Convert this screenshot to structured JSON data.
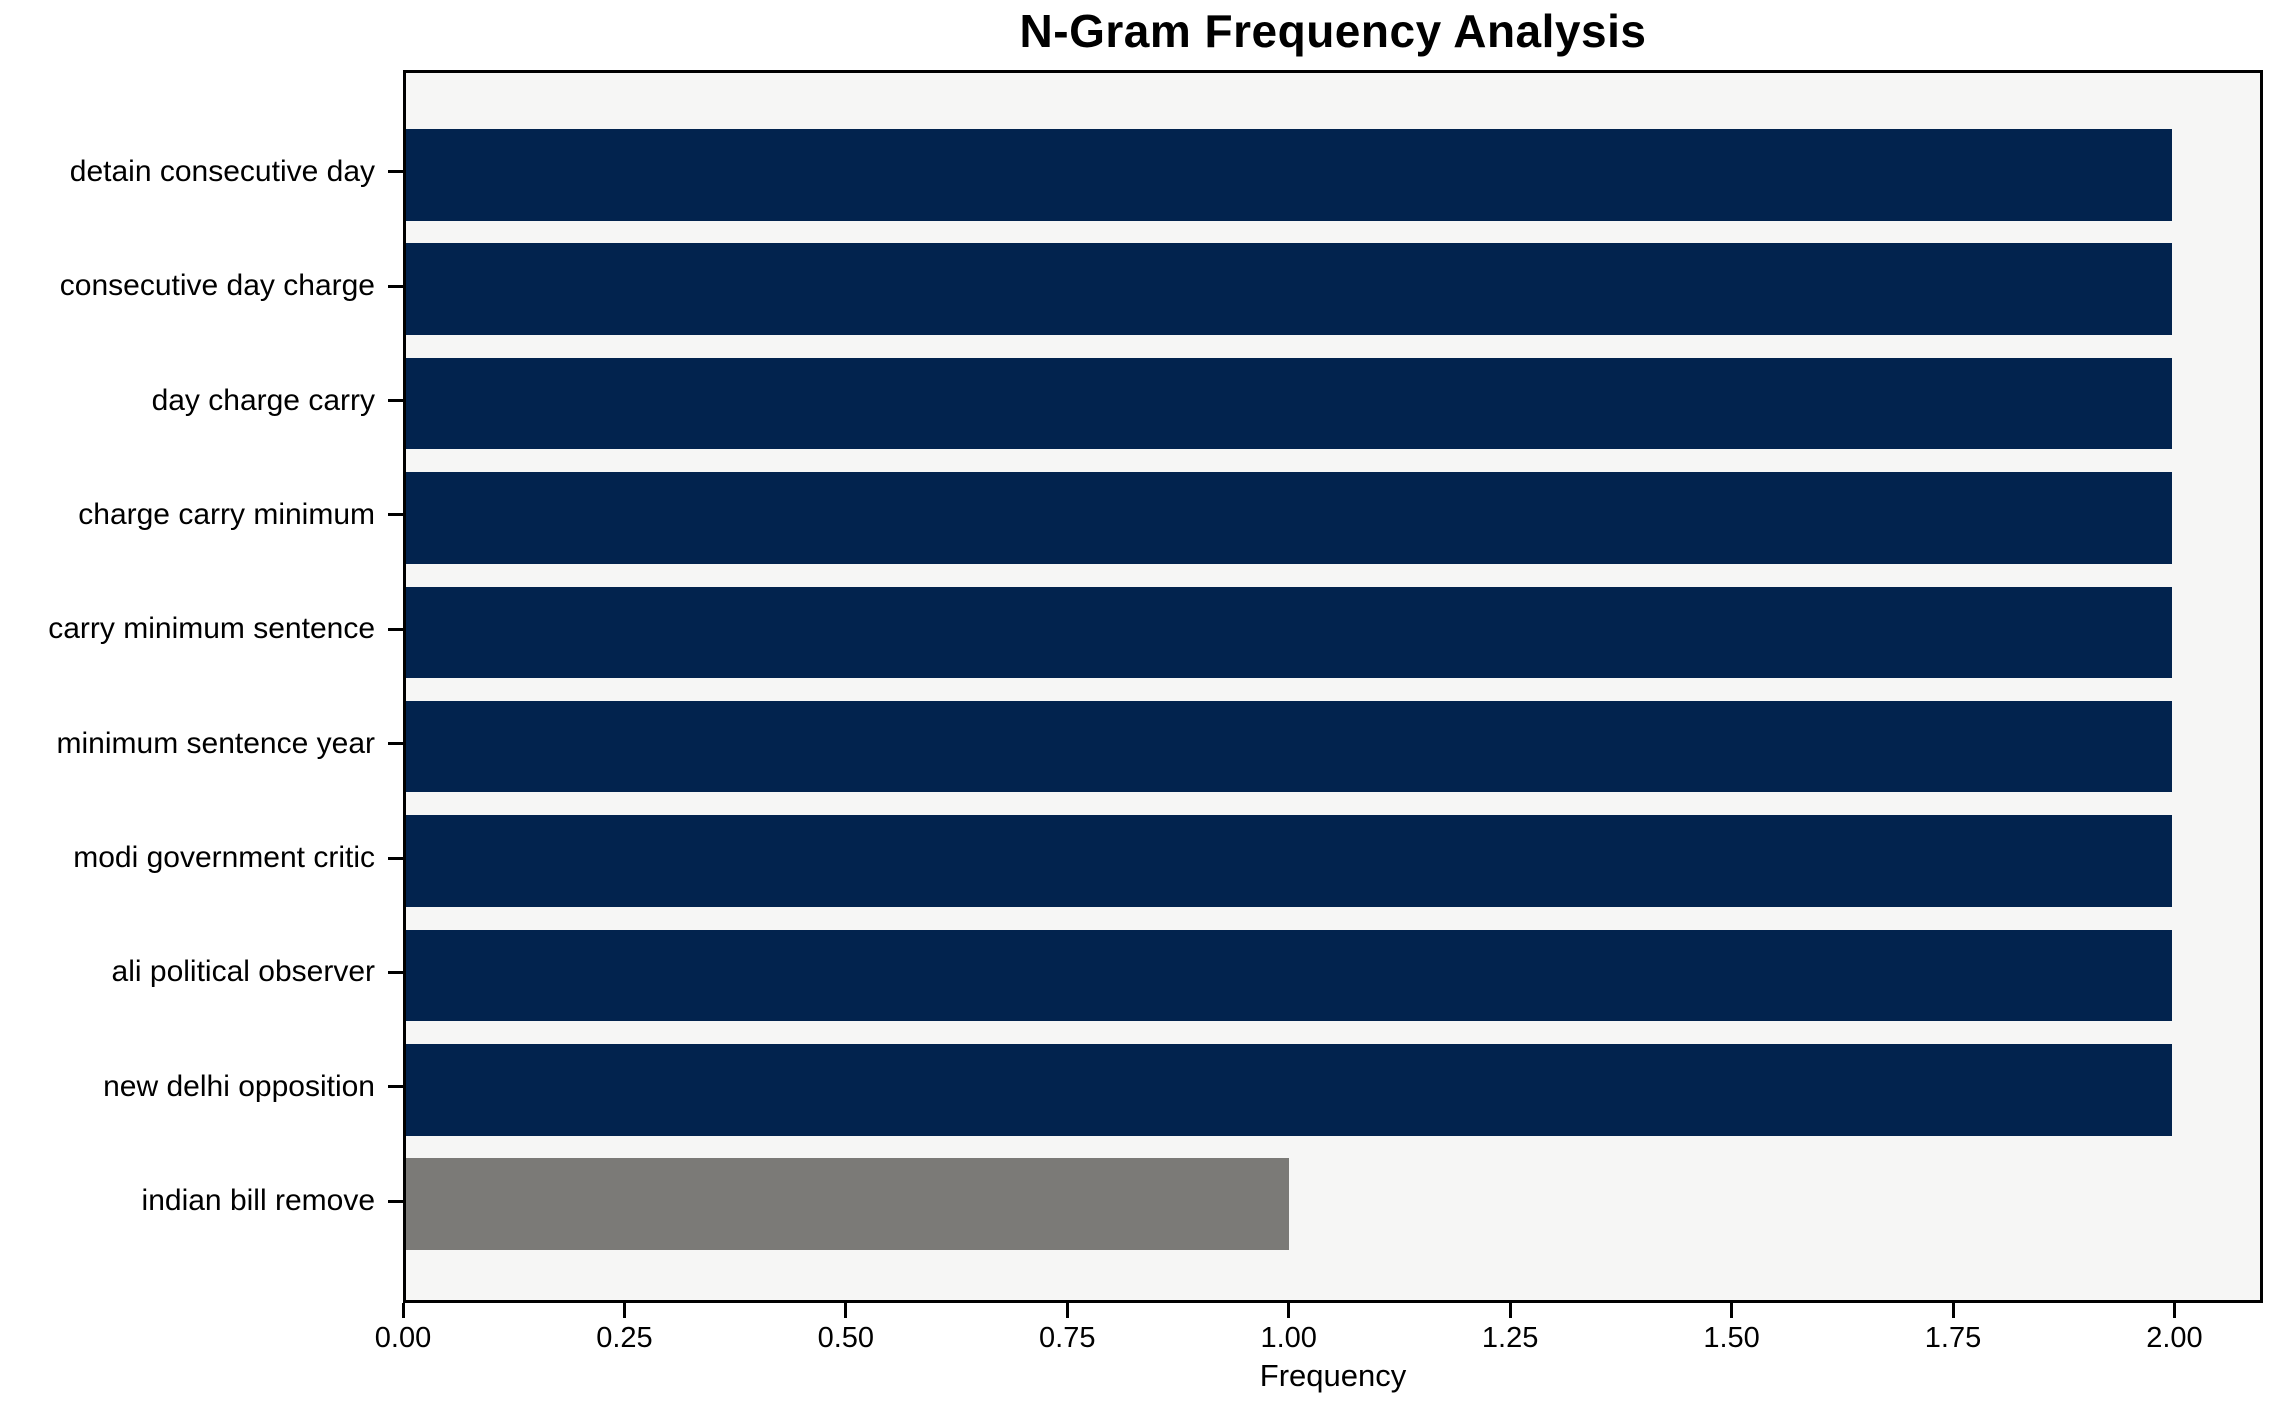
{
  "chart_data": {
    "type": "bar",
    "orientation": "horizontal",
    "title": "N-Gram Frequency Analysis",
    "xlabel": "Frequency",
    "ylabel": "",
    "categories": [
      "detain consecutive day",
      "consecutive day charge",
      "day charge carry",
      "charge carry minimum",
      "carry minimum sentence",
      "minimum sentence year",
      "modi government critic",
      "ali political observer",
      "new delhi opposition",
      "indian bill remove"
    ],
    "values": [
      2,
      2,
      2,
      2,
      2,
      2,
      2,
      2,
      2,
      1
    ],
    "bar_colors": [
      "#02234E",
      "#02234E",
      "#02234E",
      "#02234E",
      "#02234E",
      "#02234E",
      "#02234E",
      "#02234E",
      "#02234E",
      "#7B7A77"
    ],
    "xlim": [
      0,
      2.1
    ],
    "ylim": [
      -0.89,
      9.89
    ],
    "bar_thickness": 0.8,
    "xticks": [
      0,
      0.25,
      0.5,
      0.75,
      1.0,
      1.25,
      1.5,
      1.75,
      2.0
    ],
    "xtick_labels": [
      "0.00",
      "0.25",
      "0.50",
      "0.75",
      "1.00",
      "1.25",
      "1.50",
      "1.75",
      "2.00"
    ],
    "grid": false,
    "legend": null,
    "plot_background": "#F6F6F5",
    "figure_background": "#FFFFFF",
    "spine_color": "#000000"
  }
}
